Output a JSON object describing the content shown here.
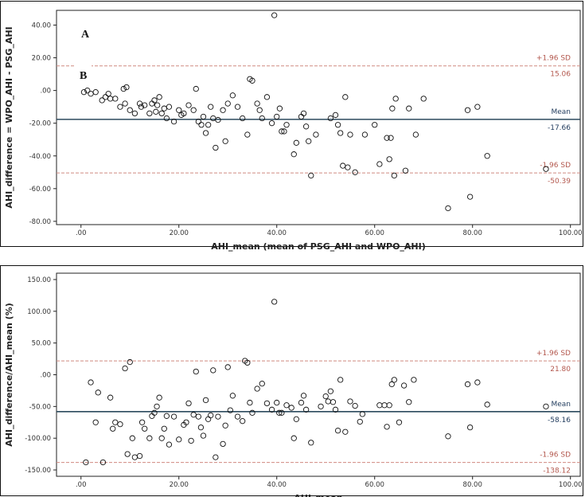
{
  "chart_data": [
    {
      "type": "scatter",
      "panel_label": "A",
      "inset_label": "B",
      "xlabel": "AHI_mean (mean of PSG_AHI and WPO_AHI)",
      "ylabel": "AHI_difference = WPO_AHI - PSG_AHI",
      "xlim": [
        -5,
        102
      ],
      "ylim": [
        -82,
        49
      ],
      "x_ticks": [
        ".00",
        "20.00",
        "40.00",
        "60.00",
        "80.00",
        "100.00"
      ],
      "x_tick_values": [
        0,
        20,
        40,
        60,
        80,
        100
      ],
      "y_ticks": [
        "40.00",
        "20.00",
        ".00",
        "-20.00",
        "-40.00",
        "-60.00",
        "-80.00"
      ],
      "y_tick_values": [
        40,
        20,
        0,
        -20,
        -40,
        -60,
        -80
      ],
      "grid": false,
      "mean": {
        "label": "Mean",
        "value": -17.66,
        "value_label": "-17.66"
      },
      "upper_loa": {
        "label": "+1.96 SD",
        "value": 15.06,
        "value_label": "15.06"
      },
      "lower_loa": {
        "label": "-1.96 SD",
        "value": -50.39,
        "value_label": "-50.39"
      },
      "points": [
        [
          0.6,
          -1
        ],
        [
          1.3,
          0
        ],
        [
          2,
          -2
        ],
        [
          3,
          -1
        ],
        [
          4.3,
          -6
        ],
        [
          5,
          -4
        ],
        [
          5.6,
          -2
        ],
        [
          6,
          -5
        ],
        [
          7,
          -5
        ],
        [
          8,
          -10
        ],
        [
          8.7,
          1
        ],
        [
          9,
          -8
        ],
        [
          9.3,
          2
        ],
        [
          10,
          -12
        ],
        [
          11,
          -14
        ],
        [
          12,
          -8
        ],
        [
          12.3,
          -10
        ],
        [
          13,
          -9
        ],
        [
          14,
          -14
        ],
        [
          14.5,
          -8
        ],
        [
          15,
          -6
        ],
        [
          15.3,
          -13
        ],
        [
          15.6,
          -9
        ],
        [
          16,
          -4
        ],
        [
          16.5,
          -14
        ],
        [
          17,
          -11
        ],
        [
          17.5,
          -17
        ],
        [
          18,
          -10
        ],
        [
          19,
          -19
        ],
        [
          20,
          -12
        ],
        [
          20.5,
          -15
        ],
        [
          21,
          -14
        ],
        [
          22,
          -9
        ],
        [
          23,
          -12
        ],
        [
          23.5,
          1
        ],
        [
          24,
          -19
        ],
        [
          24.6,
          -21
        ],
        [
          25,
          -16
        ],
        [
          25.5,
          -26
        ],
        [
          26,
          -21
        ],
        [
          26.5,
          -10
        ],
        [
          27,
          -17
        ],
        [
          27.5,
          -35
        ],
        [
          28,
          -18
        ],
        [
          29,
          -12
        ],
        [
          29.5,
          -31
        ],
        [
          30,
          -8
        ],
        [
          31,
          -3
        ],
        [
          32,
          -10
        ],
        [
          33,
          -17
        ],
        [
          34,
          -27
        ],
        [
          34.5,
          7
        ],
        [
          35,
          6
        ],
        [
          36,
          -8
        ],
        [
          36.5,
          -12
        ],
        [
          37,
          -17
        ],
        [
          38,
          -4
        ],
        [
          39,
          -20
        ],
        [
          39.5,
          46
        ],
        [
          40,
          -16
        ],
        [
          40.6,
          -11
        ],
        [
          41,
          -25
        ],
        [
          41.5,
          -25
        ],
        [
          42,
          -21
        ],
        [
          43.5,
          -39
        ],
        [
          44,
          -32
        ],
        [
          45,
          -16
        ],
        [
          45.5,
          -14
        ],
        [
          46,
          -22
        ],
        [
          46.5,
          -31
        ],
        [
          47,
          -52
        ],
        [
          48,
          -27
        ],
        [
          51,
          -17
        ],
        [
          52,
          -15
        ],
        [
          52.5,
          -21
        ],
        [
          53,
          -26
        ],
        [
          53.5,
          -46
        ],
        [
          54,
          -4
        ],
        [
          54.5,
          -47
        ],
        [
          55,
          -27
        ],
        [
          56,
          -50
        ],
        [
          58,
          -27
        ],
        [
          60,
          -21
        ],
        [
          61,
          -45
        ],
        [
          62.5,
          -29
        ],
        [
          63,
          -42
        ],
        [
          63.3,
          -29
        ],
        [
          63.6,
          -11
        ],
        [
          64,
          -52
        ],
        [
          64.3,
          -5
        ],
        [
          66.3,
          -49
        ],
        [
          67,
          -11
        ],
        [
          68.4,
          -27
        ],
        [
          70,
          -5
        ],
        [
          75,
          -72
        ],
        [
          79,
          -12
        ],
        [
          79.5,
          -65
        ],
        [
          81,
          -10
        ],
        [
          83,
          -40
        ],
        [
          95,
          -48
        ]
      ]
    },
    {
      "type": "scatter",
      "xlabel": "AHI_mean",
      "ylabel": "AHI_difference/AHI_mean (%)",
      "xlim": [
        -5,
        102
      ],
      "ylim": [
        -160,
        160
      ],
      "x_ticks": [
        ".00",
        "20.00",
        "40.00",
        "60.00",
        "80.00",
        "100.00"
      ],
      "x_tick_values": [
        0,
        20,
        40,
        60,
        80,
        100
      ],
      "y_ticks": [
        "150.00",
        "100.00",
        "50.00",
        ".00",
        "-50.00",
        "-100.00",
        "-150.00"
      ],
      "y_tick_values": [
        150,
        100,
        50,
        0,
        -50,
        -100,
        -150
      ],
      "grid": false,
      "mean": {
        "label": "Mean",
        "value": -58.16,
        "value_label": "-58.16"
      },
      "upper_loa": {
        "label": "+1.96 SD",
        "value": 21.8,
        "value_label": "21.80"
      },
      "lower_loa": {
        "label": "-1.96 SD",
        "value": -138.12,
        "value_label": "-138.12"
      },
      "points": [
        [
          1,
          -138
        ],
        [
          2,
          -12
        ],
        [
          3,
          -75
        ],
        [
          3.5,
          -28
        ],
        [
          4.5,
          -138
        ],
        [
          6,
          -36
        ],
        [
          6.5,
          -85
        ],
        [
          7,
          -75
        ],
        [
          8,
          -78
        ],
        [
          9,
          10
        ],
        [
          9.5,
          -125
        ],
        [
          10,
          20
        ],
        [
          10.5,
          -100
        ],
        [
          11,
          -130
        ],
        [
          12,
          -128
        ],
        [
          12.5,
          -75
        ],
        [
          13,
          -85
        ],
        [
          14,
          -100
        ],
        [
          14.5,
          -65
        ],
        [
          15,
          -60
        ],
        [
          15.5,
          -50
        ],
        [
          16,
          -36
        ],
        [
          16.5,
          -100
        ],
        [
          17,
          -85
        ],
        [
          17.5,
          -65
        ],
        [
          18,
          -110
        ],
        [
          19,
          -66
        ],
        [
          20,
          -102
        ],
        [
          21,
          -79
        ],
        [
          21.5,
          -75
        ],
        [
          22,
          -45
        ],
        [
          22.5,
          -104
        ],
        [
          23,
          -63
        ],
        [
          23.5,
          5
        ],
        [
          24,
          -66
        ],
        [
          24.5,
          -83
        ],
        [
          25,
          -96
        ],
        [
          25.5,
          -40
        ],
        [
          26,
          -70
        ],
        [
          26.5,
          -64
        ],
        [
          27,
          7
        ],
        [
          27.5,
          -130
        ],
        [
          28,
          -66
        ],
        [
          29,
          -109
        ],
        [
          29.5,
          -80
        ],
        [
          30,
          12
        ],
        [
          30.5,
          -56
        ],
        [
          31,
          -33
        ],
        [
          32,
          -66
        ],
        [
          33,
          -73
        ],
        [
          33.5,
          22
        ],
        [
          34,
          19
        ],
        [
          34.5,
          -44
        ],
        [
          35,
          -60
        ],
        [
          36,
          -22
        ],
        [
          37,
          -14
        ],
        [
          38,
          -45
        ],
        [
          39,
          -55
        ],
        [
          39.5,
          115
        ],
        [
          40,
          -44
        ],
        [
          40.5,
          -60
        ],
        [
          41,
          -60
        ],
        [
          42,
          -48
        ],
        [
          43,
          -52
        ],
        [
          43.5,
          -100
        ],
        [
          44,
          -70
        ],
        [
          45,
          -44
        ],
        [
          45.5,
          -33
        ],
        [
          46,
          -55
        ],
        [
          47,
          -107
        ],
        [
          49,
          -50
        ],
        [
          50,
          -34
        ],
        [
          50.5,
          -42
        ],
        [
          51,
          -26
        ],
        [
          51.5,
          -43
        ],
        [
          52,
          -55
        ],
        [
          52.5,
          -88
        ],
        [
          53,
          -8
        ],
        [
          54,
          -90
        ],
        [
          55,
          -42
        ],
        [
          56,
          -49
        ],
        [
          57,
          -74
        ],
        [
          57.5,
          -62
        ],
        [
          61,
          -48
        ],
        [
          62,
          -48
        ],
        [
          62.5,
          -82
        ],
        [
          63,
          -48
        ],
        [
          63.5,
          -15
        ],
        [
          64,
          -8
        ],
        [
          65,
          -75
        ],
        [
          66,
          -17
        ],
        [
          67,
          -43
        ],
        [
          68,
          -8
        ],
        [
          75,
          -97
        ],
        [
          79,
          -15
        ],
        [
          79.5,
          -83
        ],
        [
          81,
          -12
        ],
        [
          83,
          -47
        ],
        [
          95,
          -50
        ]
      ]
    }
  ]
}
